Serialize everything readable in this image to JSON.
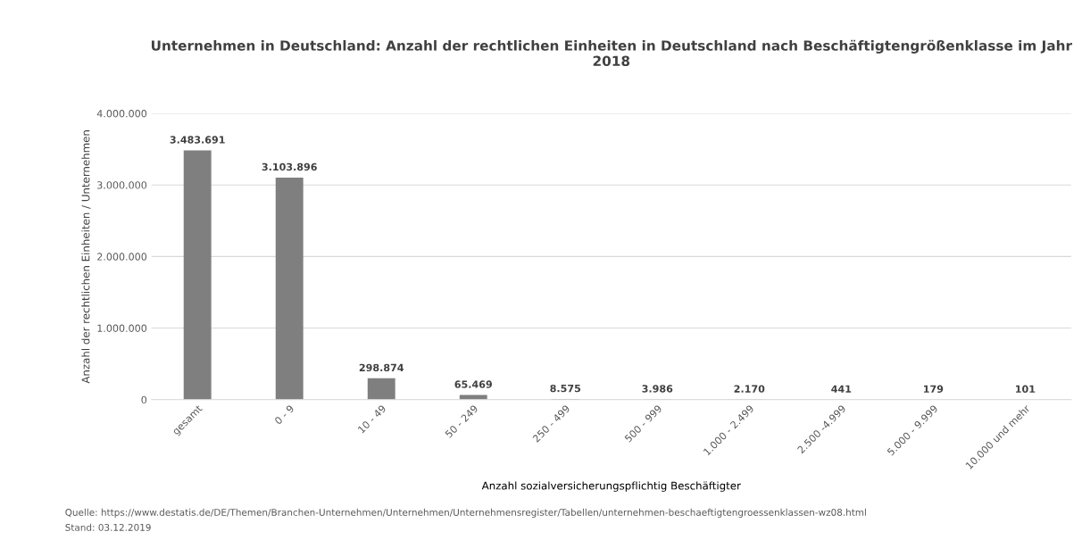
{
  "chart_data": {
    "type": "bar",
    "title": "Unternehmen in Deutschland: Anzahl der rechtlichen Einheiten in Deutschland nach Beschäftigtengrößenklasse im Jahr 2018",
    "xlabel": "Anzahl sozialversicherungspflichtig Beschäftigter",
    "ylabel": "Anzahl der rechtlichen Einheiten / Unternehmen",
    "categories": [
      "gesamt",
      "0 - 9",
      "10 - 49",
      "50 - 249",
      "250 - 499",
      "500 - 999",
      "1.000 - 2.499",
      "2.500 -4.999",
      "5.000 - 9.999",
      "10.000 und mehr"
    ],
    "values": [
      3483691,
      3103896,
      298874,
      65469,
      8575,
      3986,
      2170,
      441,
      179,
      101
    ],
    "value_labels": [
      "3.483.691",
      "3.103.896",
      "298.874",
      "65.469",
      "8.575",
      "3.986",
      "2.170",
      "441",
      "179",
      "101"
    ],
    "color": "#7f7f7f",
    "ylim": [
      0,
      4000000
    ],
    "yticks": [
      {
        "value": 0,
        "label": "0"
      },
      {
        "value": 1000000,
        "label": "1.000.000"
      },
      {
        "value": 2000000,
        "label": "2.000.000"
      },
      {
        "value": 3000000,
        "label": "3.000.000"
      },
      {
        "value": 4000000,
        "label": "4.000.000"
      }
    ],
    "grid": "y",
    "annotations": [
      "Quelle: https://www.destatis.de/DE/Themen/Branchen-Unternehmen/Unternehmen/Unternehmensregister/Tabellen/unternehmen-beschaeftigtengroessenklassen-wz08.html",
      "Stand: 03.12.2019"
    ]
  }
}
